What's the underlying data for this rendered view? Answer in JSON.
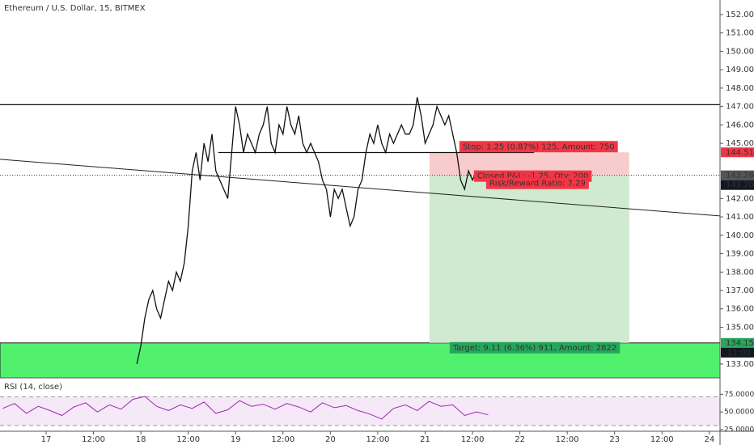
{
  "chart_data": {
    "type": "line",
    "title": "Ethereum / U.S. Dollar, 15, BITMEX",
    "color": "#111111",
    "x": [
      23,
      24,
      25,
      26,
      27,
      28,
      29,
      30,
      31,
      32,
      33,
      34,
      35,
      36,
      37,
      38,
      39,
      40,
      41,
      42,
      43,
      44,
      45,
      46,
      47,
      48,
      49,
      50,
      51,
      52,
      53,
      54,
      55,
      56,
      57,
      58,
      59,
      60,
      61,
      62,
      63,
      64,
      65,
      66,
      67,
      68,
      69,
      70,
      71,
      72,
      73,
      74,
      75,
      76,
      77,
      78,
      79,
      80,
      81,
      82,
      83,
      84,
      85,
      86,
      87,
      88,
      89,
      90,
      91,
      92,
      93,
      94,
      95,
      96,
      97,
      98,
      99,
      100,
      101,
      102,
      103,
      104,
      105,
      106,
      107,
      108,
      109,
      110
    ],
    "values": [
      133,
      134,
      135.5,
      136.5,
      137,
      136,
      135.5,
      136.5,
      137.5,
      137,
      138,
      137.5,
      138.5,
      140.5,
      143.5,
      144.5,
      143,
      145,
      144,
      145.5,
      143.5,
      143,
      142.5,
      142,
      144.5,
      147,
      146,
      144.5,
      145.5,
      145,
      144.5,
      145.5,
      146,
      147,
      145,
      144.5,
      146,
      145.5,
      147,
      146,
      145.5,
      146.5,
      145,
      144.5,
      145,
      144.5,
      144,
      143,
      142.5,
      141,
      142.5,
      142,
      142.5,
      141.5,
      140.5,
      141,
      142.5,
      143,
      144.5,
      145.5,
      145,
      146,
      145,
      144.5,
      145.5,
      145,
      145.5,
      146,
      145.5,
      145.5,
      146,
      147.5,
      146.5,
      145,
      145.5,
      146,
      147,
      146.5,
      146,
      146.5,
      145.5,
      144.5,
      143,
      142.5,
      143.5,
      143,
      143.5,
      143.3
    ],
    "xlim": [
      -11.68,
      170.7
    ],
    "xticks": [
      {
        "value": 0,
        "label": "17"
      },
      {
        "value": 12,
        "label": "12:00"
      },
      {
        "value": 24,
        "label": "18"
      },
      {
        "value": 36,
        "label": "12:00"
      },
      {
        "value": 48,
        "label": "19"
      },
      {
        "value": 60,
        "label": "12:00"
      },
      {
        "value": 72,
        "label": "20"
      },
      {
        "value": 84,
        "label": "12:00"
      },
      {
        "value": 96,
        "label": "21"
      },
      {
        "value": 108,
        "label": "12:00"
      },
      {
        "value": 120,
        "label": "22"
      },
      {
        "value": 132,
        "label": "12:00"
      },
      {
        "value": 144,
        "label": "23"
      },
      {
        "value": 156,
        "label": "12:00"
      },
      {
        "value": 168,
        "label": "24"
      }
    ],
    "ylim": [
      132.25,
      152.79
    ],
    "yticks": [
      {
        "value": 152,
        "label": "152.00"
      },
      {
        "value": 151,
        "label": "151.00"
      },
      {
        "value": 150,
        "label": "150.00"
      },
      {
        "value": 149,
        "label": "149.00"
      },
      {
        "value": 148,
        "label": "148.00"
      },
      {
        "value": 147,
        "label": "147.00"
      },
      {
        "value": 146,
        "label": "146.00"
      },
      {
        "value": 145,
        "label": "145.00"
      },
      {
        "value": 142,
        "label": "142.00"
      },
      {
        "value": 141,
        "label": "141.00"
      },
      {
        "value": 140,
        "label": "140.00"
      },
      {
        "value": 139,
        "label": "139.00"
      },
      {
        "value": 138,
        "label": "138.00"
      },
      {
        "value": 137,
        "label": "137.00"
      },
      {
        "value": 136,
        "label": "136.00"
      },
      {
        "value": 135,
        "label": "135.00"
      },
      {
        "value": 133,
        "label": "133.00"
      }
    ],
    "levels": [
      147.1
    ],
    "segment": {
      "value": 144.5,
      "x": [
        43.6,
        123.6
      ]
    },
    "current_price": 143.26,
    "trendline": {
      "x": [
        -11.68,
        170.7
      ],
      "y": [
        144.13,
        141.05
      ]
    },
    "zone": {
      "top": 134.15,
      "bottom": 132.25,
      "color": "#33ee55"
    },
    "position": {
      "entry": 143.26,
      "stop": 144.51,
      "target": 134.15,
      "x": [
        97.1,
        147.7
      ]
    },
    "price_labels": [
      {
        "value": 144.51,
        "label": "144.51",
        "color": "#f23645"
      },
      {
        "value": 143.26,
        "label": "143.26",
        "color": "#555555"
      },
      {
        "value": 143.2,
        "label": "143.20",
        "color": "#131722"
      },
      {
        "value": 134.15,
        "label": "134.15",
        "color": "#26a65b"
      }
    ],
    "countdown": "11:00",
    "annotations": [
      {
        "text": "Stop: 1.25 (0.87%) 125, Amount: 750",
        "color": "#f23645"
      },
      {
        "text": "Closed P&L: -1.25, Qty: 200",
        "color": "#f23645"
      },
      {
        "text": "Risk/Reward Ratio: 7.29",
        "color": "#f23645"
      },
      {
        "text": "Target: 9.11 (6.36%) 911, Amount: 2822",
        "color": "#26a65b"
      }
    ],
    "rsi": {
      "title": "RSI (14, close)",
      "color": "#9c27b0",
      "ylim": [
        22.7,
        98.3
      ],
      "yticks": [
        {
          "value": 75,
          "label": "75.0000"
        },
        {
          "value": 50,
          "label": "50.0000"
        },
        {
          "value": 25,
          "label": "25.0000"
        }
      ],
      "band": [
        71.5,
        30.8
      ],
      "x": [
        -11,
        -8,
        -5,
        -2,
        1,
        4,
        7,
        10,
        13,
        16,
        19,
        22,
        25,
        28,
        31,
        34,
        37,
        40,
        43,
        46,
        49,
        52,
        55,
        58,
        61,
        64,
        67,
        70,
        73,
        76,
        79,
        82,
        85,
        88,
        91,
        94,
        97,
        100,
        103,
        106,
        109,
        112
      ],
      "values": [
        55,
        62,
        48,
        58,
        52,
        45,
        57,
        63,
        50,
        60,
        54,
        68,
        72,
        58,
        52,
        60,
        55,
        64,
        48,
        53,
        66,
        58,
        61,
        54,
        62,
        57,
        50,
        63,
        56,
        59,
        52,
        47,
        40,
        55,
        60,
        52,
        65,
        58,
        60,
        45,
        50,
        46
      ]
    }
  }
}
